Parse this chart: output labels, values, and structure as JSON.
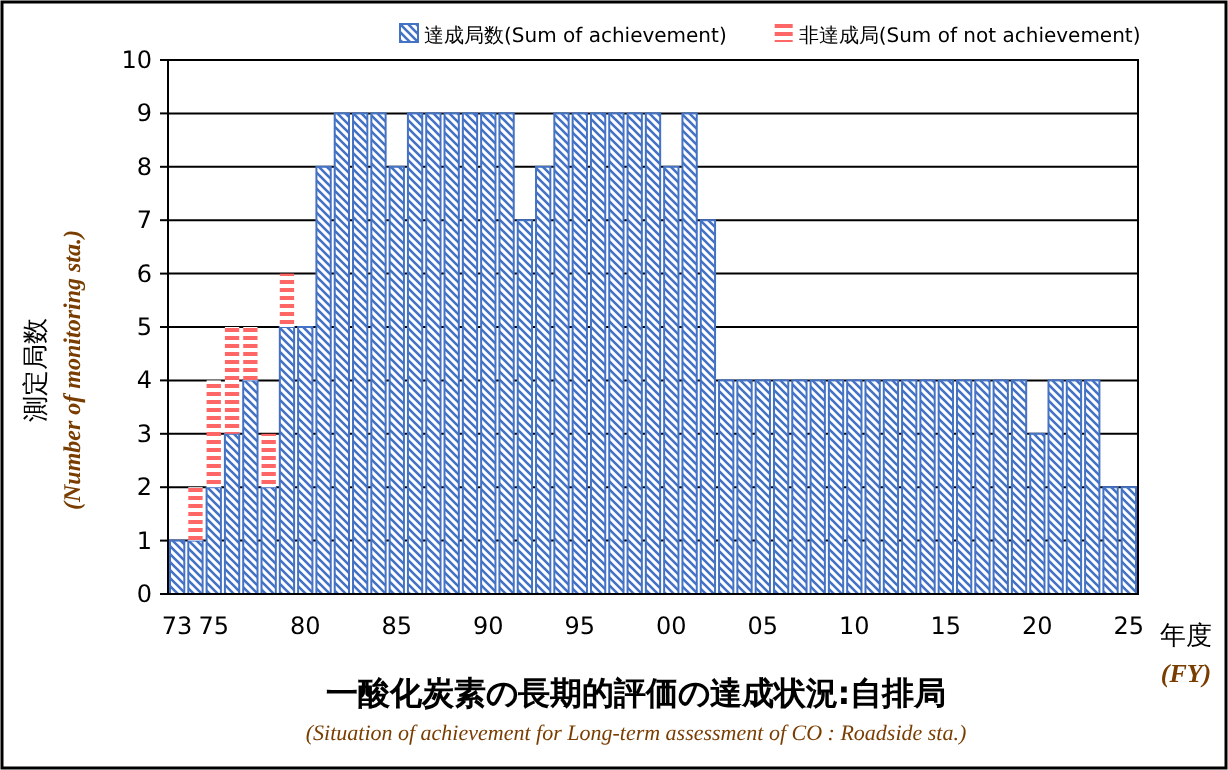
{
  "chart_data": {
    "type": "bar",
    "stacked": true,
    "title": "一酸化炭素の長期的評価の達成状況:自排局",
    "subtitle": "(Situation of achievement for Long-term assessment of CO : Roadside sta.)",
    "xlabel": "年度",
    "ylabel": "測定局数",
    "annotations": [
      "(FY)",
      "(Number of monitoring sta.)"
    ],
    "categories": [
      "73",
      null,
      "75",
      null,
      null,
      null,
      null,
      "80",
      null,
      null,
      null,
      null,
      "85",
      null,
      null,
      null,
      null,
      "90",
      null,
      null,
      null,
      null,
      "95",
      null,
      null,
      null,
      null,
      "00",
      null,
      null,
      null,
      null,
      "05",
      null,
      null,
      null,
      null,
      "10",
      null,
      null,
      null,
      null,
      "15",
      null,
      null,
      null,
      null,
      "20",
      null,
      null,
      null,
      null,
      "25"
    ],
    "series": [
      {
        "name": "達成局数(Sum of achievement)",
        "color": "#4472c4",
        "values": [
          1,
          1,
          2,
          3,
          4,
          2,
          5,
          5,
          8,
          9,
          9,
          9,
          8,
          9,
          9,
          9,
          9,
          9,
          9,
          7,
          8,
          9,
          9,
          9,
          9,
          9,
          9,
          8,
          9,
          7,
          4,
          4,
          4,
          4,
          4,
          4,
          4,
          4,
          4,
          4,
          4,
          4,
          4,
          4,
          4,
          4,
          4,
          3,
          4,
          4,
          4,
          2,
          2
        ]
      },
      {
        "name": "非達成局(Sum of not achievement)",
        "color": "#ff6666",
        "values": [
          0,
          1,
          2,
          2,
          1,
          1,
          1,
          0,
          0,
          0,
          0,
          0,
          0,
          0,
          0,
          0,
          0,
          0,
          0,
          0,
          0,
          0,
          0,
          0,
          0,
          0,
          0,
          0,
          0,
          0,
          0,
          0,
          0,
          0,
          0,
          0,
          0,
          0,
          0,
          0,
          0,
          0,
          0,
          0,
          0,
          0,
          0,
          0,
          0,
          0,
          0,
          0,
          0
        ]
      }
    ],
    "ylim": [
      0,
      10
    ],
    "yticks": [
      0,
      1,
      2,
      3,
      4,
      5,
      6,
      7,
      8,
      9,
      10
    ],
    "grid": "y",
    "legend": "top"
  }
}
